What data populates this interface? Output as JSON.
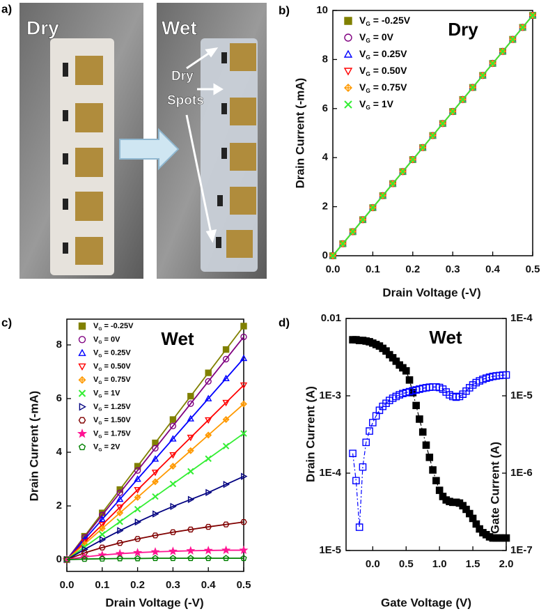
{
  "photo": {
    "label": "a)",
    "left_title": "Dry",
    "right_title": "Wet",
    "annotation": [
      "Dry",
      "Spots"
    ]
  },
  "chart_data": [
    {
      "type": "line",
      "panel_label": "b)",
      "title": "Dry",
      "x_label": "Drain Voltage (-V)",
      "y_label": "Drain Current (-mA)",
      "x": [
        0,
        0.025,
        0.05,
        0.075,
        0.1,
        0.125,
        0.15,
        0.175,
        0.2,
        0.225,
        0.25,
        0.275,
        0.3,
        0.325,
        0.35,
        0.375,
        0.4,
        0.425,
        0.45,
        0.475,
        0.5
      ],
      "xlim": [
        0,
        0.5
      ],
      "xticks": [
        {
          "value": 0,
          "label": "0.0"
        },
        0.1,
        0.2,
        0.3,
        0.4,
        0.5
      ],
      "ylim": [
        0,
        10
      ],
      "yticks": [
        0,
        2,
        4,
        6,
        8,
        10
      ],
      "legend": "upper left",
      "series": [
        {
          "name": "VG = -0.25V",
          "color": "#808000",
          "marker": "square",
          "filled": true,
          "values": [
            0,
            0.49,
            0.98,
            1.47,
            1.96,
            2.45,
            2.94,
            3.43,
            3.92,
            4.41,
            4.9,
            5.39,
            5.88,
            6.37,
            6.86,
            7.35,
            7.84,
            8.33,
            8.82,
            9.31,
            9.8
          ]
        },
        {
          "name": "VG = 0V",
          "color": "#800080",
          "marker": "circle",
          "filled": false,
          "values": [
            0,
            0.49,
            0.98,
            1.47,
            1.96,
            2.45,
            2.94,
            3.43,
            3.92,
            4.41,
            4.9,
            5.39,
            5.88,
            6.37,
            6.86,
            7.35,
            7.84,
            8.33,
            8.82,
            9.31,
            9.8
          ]
        },
        {
          "name": "VG = 0.25V",
          "color": "#0000ff",
          "marker": "triangle-up",
          "filled": false,
          "values": [
            0,
            0.49,
            0.98,
            1.47,
            1.96,
            2.45,
            2.94,
            3.43,
            3.92,
            4.41,
            4.9,
            5.39,
            5.88,
            6.37,
            6.86,
            7.35,
            7.84,
            8.33,
            8.82,
            9.31,
            9.8
          ]
        },
        {
          "name": "VG = 0.50V",
          "color": "#ff0000",
          "marker": "triangle-down",
          "filled": false,
          "values": [
            0,
            0.49,
            0.98,
            1.47,
            1.96,
            2.45,
            2.94,
            3.43,
            3.92,
            4.41,
            4.9,
            5.39,
            5.88,
            6.37,
            6.86,
            7.35,
            7.84,
            8.33,
            8.82,
            9.31,
            9.8
          ]
        },
        {
          "name": "VG = 0.75V",
          "color": "#ff9900",
          "marker": "diamond",
          "filled": false,
          "values": [
            0,
            0.49,
            0.98,
            1.47,
            1.96,
            2.45,
            2.94,
            3.43,
            3.92,
            4.41,
            4.9,
            5.39,
            5.88,
            6.37,
            6.86,
            7.35,
            7.84,
            8.33,
            8.82,
            9.31,
            9.8
          ]
        },
        {
          "name": "VG = 1V",
          "color": "#33ee33",
          "marker": "x",
          "filled": false,
          "values": [
            0,
            0.49,
            0.98,
            1.47,
            1.96,
            2.45,
            2.94,
            3.43,
            3.92,
            4.41,
            4.9,
            5.39,
            5.88,
            6.37,
            6.86,
            7.35,
            7.84,
            8.33,
            8.82,
            9.31,
            9.8
          ]
        }
      ]
    },
    {
      "type": "line",
      "panel_label": "c)",
      "title": "Wet",
      "x_label": "Drain Voltage (-V)",
      "y_label": "Drain Current (-mA)",
      "x": [
        0,
        0.05,
        0.1,
        0.15,
        0.2,
        0.25,
        0.3,
        0.35,
        0.4,
        0.45,
        0.5
      ],
      "xlim": [
        0,
        0.5
      ],
      "xticks": [
        {
          "value": 0,
          "label": "0.0"
        },
        0.1,
        0.2,
        0.3,
        0.4,
        0.5
      ],
      "ylim": [
        -0.44,
        8.96
      ],
      "yticks": [
        0,
        2,
        4,
        6,
        8
      ],
      "legend": "upper left",
      "series": [
        {
          "name": "VG = -0.25V",
          "color": "#808000",
          "marker": "square",
          "filled": true,
          "values": [
            0,
            0.87,
            1.74,
            2.61,
            3.48,
            4.35,
            5.22,
            6.09,
            6.96,
            7.83,
            8.7
          ]
        },
        {
          "name": "VG = 0V",
          "color": "#800080",
          "marker": "circle",
          "filled": false,
          "values": [
            0,
            0.83,
            1.66,
            2.49,
            3.32,
            4.15,
            4.98,
            5.81,
            6.64,
            7.47,
            8.3
          ]
        },
        {
          "name": "VG = 0.25V",
          "color": "#0000ff",
          "marker": "triangle-up",
          "filled": false,
          "values": [
            0,
            0.75,
            1.5,
            2.25,
            3,
            3.75,
            4.5,
            5.25,
            6,
            6.75,
            7.5
          ]
        },
        {
          "name": "VG = 0.50V",
          "color": "#ff0000",
          "marker": "triangle-down",
          "filled": false,
          "values": [
            0,
            0.65,
            1.3,
            1.95,
            2.6,
            3.25,
            3.9,
            4.55,
            5.2,
            5.85,
            6.5
          ]
        },
        {
          "name": "VG = 0.75V",
          "color": "#ff9900",
          "marker": "diamond",
          "filled": false,
          "values": [
            0,
            0.58,
            1.16,
            1.74,
            2.32,
            2.9,
            3.48,
            4.06,
            4.64,
            5.22,
            5.8
          ]
        },
        {
          "name": "VG = 1V",
          "color": "#33ee33",
          "marker": "x",
          "filled": false,
          "values": [
            0,
            0.47,
            0.94,
            1.41,
            1.88,
            2.35,
            2.82,
            3.29,
            3.76,
            4.23,
            4.7
          ]
        },
        {
          "name": "VG = 1.25V",
          "color": "#000080",
          "marker": "triangle-right",
          "filled": false,
          "values": [
            0,
            0.38,
            0.74,
            1.08,
            1.4,
            1.7,
            1.98,
            2.24,
            2.5,
            2.8,
            3.1
          ]
        },
        {
          "name": "VG = 1.50V",
          "color": "#800000",
          "marker": "hexagon",
          "filled": false,
          "values": [
            0,
            0.25,
            0.45,
            0.62,
            0.77,
            0.9,
            1.02,
            1.12,
            1.22,
            1.31,
            1.4
          ]
        },
        {
          "name": "VG = 1.75V",
          "color": "#ff1493",
          "marker": "star",
          "filled": true,
          "values": [
            0,
            0.1,
            0.17,
            0.22,
            0.26,
            0.29,
            0.31,
            0.33,
            0.34,
            0.35,
            0.35
          ]
        },
        {
          "name": "VG = 2V",
          "color": "#008000",
          "marker": "pentagon",
          "filled": false,
          "values": [
            0,
            0.02,
            0.03,
            0.04,
            0.04,
            0.05,
            0.05,
            0.05,
            0.05,
            0.05,
            0.05
          ]
        }
      ]
    },
    {
      "type": "line",
      "panel_label": "d)",
      "title": "Wet",
      "x_label": "Gate Voltage (V)",
      "y_label": "Drain Current (A)",
      "y2_label": "Gate Current (A)",
      "x": [
        -0.3,
        -0.25,
        -0.2,
        -0.15,
        -0.1,
        -0.05,
        0,
        0.05,
        0.1,
        0.15,
        0.2,
        0.25,
        0.3,
        0.35,
        0.4,
        0.45,
        0.5,
        0.55,
        0.6,
        0.65,
        0.7,
        0.75,
        0.8,
        0.85,
        0.9,
        0.95,
        1.0,
        1.05,
        1.1,
        1.15,
        1.2,
        1.25,
        1.3,
        1.35,
        1.4,
        1.45,
        1.5,
        1.55,
        1.6,
        1.65,
        1.7,
        1.75,
        1.8,
        1.85,
        1.9,
        1.95,
        2.0
      ],
      "xlim": [
        -0.4,
        2.0
      ],
      "xticks": [
        {
          "value": 0,
          "label": "0.0"
        },
        0.5,
        {
          "value": 1,
          "label": "1.0"
        },
        1.5,
        {
          "value": 2,
          "label": "2.0"
        }
      ],
      "ylim": [
        1e-05,
        0.01
      ],
      "ylog": true,
      "yticks": [
        {
          "value": 1e-05,
          "label": "1E-5"
        },
        {
          "value": 0.0001,
          "label": "1E-4"
        },
        {
          "value": 0.001,
          "label": "1E-3"
        },
        0.01
      ],
      "y2lim": [
        1e-07,
        0.0001
      ],
      "y2log": true,
      "y2ticks": [
        {
          "value": 1e-07,
          "label": "1E-7"
        },
        {
          "value": 1e-06,
          "label": "1E-6"
        },
        {
          "value": 1e-05,
          "label": "1E-5"
        },
        {
          "value": 0.0001,
          "label": "1E-4"
        }
      ],
      "series": [
        {
          "color": "#000000",
          "marker": "square",
          "filled": true,
          "values": [
            0.0053,
            0.0053,
            0.0052,
            0.0052,
            0.0051,
            0.005,
            0.0048,
            0.0046,
            0.0044,
            0.0041,
            0.0038,
            0.0034,
            0.0031,
            0.0028,
            0.0025,
            0.0023,
            0.0021,
            0.0016,
            0.0011,
            0.00075,
            0.0005,
            0.00034,
            0.00023,
            0.00016,
            0.00011,
            8e-05,
            6e-05,
            5e-05,
            4.5e-05,
            4.3e-05,
            4.2e-05,
            4.2e-05,
            4.1e-05,
            3.8e-05,
            3.4e-05,
            3e-05,
            2.6e-05,
            2.2e-05,
            1.9e-05,
            1.7e-05,
            1.6e-05,
            1.5e-05,
            1.45e-05,
            1.45e-05,
            1.45e-05,
            1.45e-05,
            1.45e-05
          ]
        },
        {
          "color": "#0000ff",
          "marker": "square",
          "filled": false,
          "axis": "y2",
          "values": [
            1.8e-06,
            8e-07,
            2e-07,
            1.2e-06,
            2.5e-06,
            3.5e-06,
            4.5e-06,
            5.5e-06,
            6.5e-06,
            7.3e-06,
            8e-06,
            8.7e-06,
            9.3e-06,
            9.8e-06,
            1.03e-05,
            1.07e-05,
            1.1e-05,
            1.13e-05,
            1.16e-05,
            1.19e-05,
            1.22e-05,
            1.25e-05,
            1.27e-05,
            1.29e-05,
            1.3e-05,
            1.3e-05,
            1.28e-05,
            1.22e-05,
            1.12e-05,
            1.03e-05,
            9.8e-06,
            9.6e-06,
            9.8e-06,
            1.05e-05,
            1.15e-05,
            1.27e-05,
            1.38e-05,
            1.48e-05,
            1.56e-05,
            1.63e-05,
            1.69e-05,
            1.74e-05,
            1.78e-05,
            1.81e-05,
            1.83e-05,
            1.85e-05,
            1.86e-05
          ]
        }
      ]
    }
  ]
}
